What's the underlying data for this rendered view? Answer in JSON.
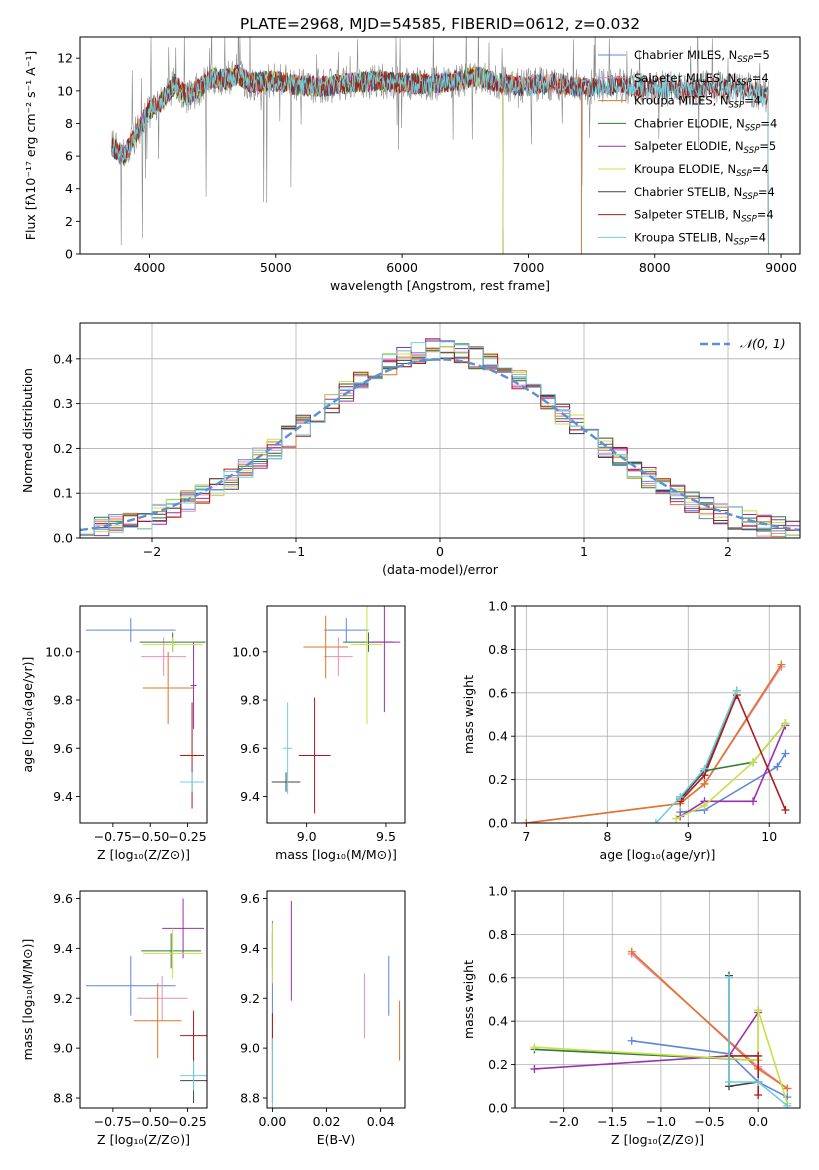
{
  "figure_title": "PLATE=2968, MJD=54585, FIBERID=0612, z=0.032",
  "colors": {
    "chabrier_miles": "#5b86d9",
    "salpeter_miles": "#e48fb8",
    "kroupa_miles": "#e0752b",
    "chabrier_elodie": "#2f7a3a",
    "salpeter_elodie": "#9b2fae",
    "kroupa_elodie": "#c8e04a",
    "chabrier_stelib": "#444444",
    "salpeter_stelib": "#b01818",
    "kroupa_stelib": "#6fd0dd",
    "gaussian": "#5b8fd6"
  },
  "chart_data": [
    {
      "id": "spectrum",
      "type": "line",
      "xlabel": "wavelength [Angstrom, rest frame]",
      "ylabel": "Flux [fλ10⁻¹⁷ erg cm⁻² s⁻¹ A⁻¹]",
      "xlim": [
        3450,
        9150
      ],
      "ylim": [
        0,
        13.3
      ],
      "xticks": [
        4000,
        5000,
        6000,
        7000,
        8000,
        9000
      ],
      "yticks": [
        0,
        2,
        4,
        6,
        8,
        10,
        12
      ],
      "legend_position": "top-right",
      "continuum": {
        "x": [
          3700,
          3800,
          3900,
          4000,
          4100,
          4200,
          4300,
          4400,
          4500,
          4600,
          4700,
          4800,
          5000,
          5200,
          5400,
          5600,
          5800,
          6000,
          6200,
          6400,
          6600,
          6800,
          7000,
          7200,
          7400,
          7600,
          7800,
          8000,
          8200,
          8400,
          8600,
          8800,
          8900
        ],
        "y": [
          6.6,
          6.0,
          7.5,
          8.8,
          9.4,
          10.4,
          9.6,
          10.2,
          10.8,
          10.7,
          11.0,
          10.5,
          10.6,
          10.3,
          10.3,
          10.5,
          10.6,
          10.5,
          10.4,
          10.6,
          10.9,
          10.4,
          10.3,
          10.5,
          10.2,
          10.3,
          10.3,
          10.2,
          10.1,
          10.2,
          10.1,
          10.0,
          9.6
        ]
      },
      "series": [
        {
          "name": "Chabrier MILES",
          "nssp": "5",
          "color": "#5b86d9",
          "xmax": 7420
        },
        {
          "name": "Salpeter MILES",
          "nssp": "4",
          "color": "#e48fb8",
          "xmax": 7420
        },
        {
          "name": "Kroupa MILES",
          "nssp": "4",
          "color": "#e0752b",
          "xmax": 7420
        },
        {
          "name": "Chabrier ELODIE",
          "nssp": "4",
          "color": "#2f7a3a",
          "xmax": 6800
        },
        {
          "name": "Salpeter ELODIE",
          "nssp": "5",
          "color": "#9b2fae",
          "xmax": 6800
        },
        {
          "name": "Kroupa ELODIE",
          "nssp": "4",
          "color": "#c8e04a",
          "xmax": 6800
        },
        {
          "name": "Chabrier STELIB",
          "nssp": "4",
          "color": "#444444",
          "xmax": 8900
        },
        {
          "name": "Salpeter STELIB",
          "nssp": "4",
          "color": "#b01818",
          "xmax": 8900
        },
        {
          "name": "Kroupa STELIB",
          "nssp": "4",
          "color": "#6fd0dd",
          "xmax": 8900
        }
      ]
    },
    {
      "id": "residuals",
      "type": "histogram",
      "xlabel": "(data-model)/error",
      "ylabel": "Normed distribution",
      "xlim": [
        -2.5,
        2.5
      ],
      "ylim": [
        0,
        0.48
      ],
      "xticks": [
        -2,
        -1,
        0,
        1,
        2
      ],
      "yticks": [
        0.0,
        0.1,
        0.2,
        0.3,
        0.4
      ],
      "grid": true,
      "legend": "𝒩(0, 1)",
      "legend_position": "top-right",
      "bin_width": 0.1
    },
    {
      "id": "age_vs_z",
      "type": "errorbar",
      "xlabel": "Z [log₁₀(Z/Z⊙)]",
      "ylabel": "age  [log₁₀(age/yr)]",
      "xlim": [
        -0.97,
        -0.12
      ],
      "ylim": [
        9.29,
        10.19
      ],
      "xticks": [
        -0.75,
        -0.5,
        -0.25
      ],
      "xticklabels": [
        "−0.75",
        "−0.50",
        "−0.25"
      ],
      "yticks": [
        9.4,
        9.6,
        9.8,
        10.0
      ],
      "points": [
        {
          "x": -0.63,
          "y": 10.09,
          "dx": 0.3,
          "dy": 0.05,
          "color": "#5b86d9"
        },
        {
          "x": -0.41,
          "y": 9.98,
          "dx": 0.15,
          "dy": 0.08,
          "color": "#e48fb8"
        },
        {
          "x": -0.38,
          "y": 9.85,
          "dx": 0.17,
          "dy": 0.15,
          "color": "#e0752b"
        },
        {
          "x": -0.35,
          "y": 10.04,
          "dx": 0.22,
          "dy": 0.04,
          "color": "#2f7a3a"
        },
        {
          "x": -0.21,
          "y": 9.86,
          "dx": 0.02,
          "dy": 0.18,
          "color": "#9b2fae"
        },
        {
          "x": -0.35,
          "y": 10.03,
          "dx": 0.2,
          "dy": 0.03,
          "color": "#c8e04a"
        },
        {
          "x": -0.22,
          "y": 9.46,
          "dx": 0.08,
          "dy": 0.04,
          "color": "#444444"
        },
        {
          "x": -0.22,
          "y": 9.57,
          "dx": 0.08,
          "dy": 0.22,
          "color": "#b01818"
        },
        {
          "x": -0.22,
          "y": 9.46,
          "dx": 0.08,
          "dy": 0.04,
          "color": "#6fd0dd"
        }
      ]
    },
    {
      "id": "age_vs_mass",
      "type": "errorbar",
      "xlabel": "mass [log₁₀(M/M⊙)]",
      "ylabel": "",
      "xlim": [
        8.75,
        9.62
      ],
      "ylim": [
        9.29,
        10.19
      ],
      "xticks": [
        9.0,
        9.5
      ],
      "yticks": [
        9.4,
        9.6,
        9.8,
        10.0
      ],
      "points": [
        {
          "x": 9.25,
          "y": 10.09,
          "dx": 0.14,
          "dy": 0.05,
          "color": "#5b86d9"
        },
        {
          "x": 9.2,
          "y": 9.98,
          "dx": 0.09,
          "dy": 0.08,
          "color": "#e48fb8"
        },
        {
          "x": 9.12,
          "y": 10.02,
          "dx": 0.14,
          "dy": 0.13,
          "color": "#e0752b"
        },
        {
          "x": 9.39,
          "y": 10.04,
          "dx": 0.16,
          "dy": 0.04,
          "color": "#2f7a3a"
        },
        {
          "x": 9.49,
          "y": 10.04,
          "dx": 0.1,
          "dy": 0.29,
          "color": "#9b2fae"
        },
        {
          "x": 9.38,
          "y": 10.03,
          "dx": 0.1,
          "dy": 0.33,
          "color": "#c8e04a"
        },
        {
          "x": 8.87,
          "y": 9.46,
          "dx": 0.09,
          "dy": 0.04,
          "color": "#444444"
        },
        {
          "x": 9.05,
          "y": 9.57,
          "dx": 0.1,
          "dy": 0.24,
          "color": "#b01818"
        },
        {
          "x": 8.88,
          "y": 9.6,
          "dx": 0.03,
          "dy": 0.19,
          "color": "#6fd0dd"
        }
      ]
    },
    {
      "id": "weight_vs_age",
      "type": "line",
      "xlabel": "age  [log₁₀(age/yr)]",
      "ylabel": "mass weight",
      "xlim": [
        6.86,
        10.38
      ],
      "ylim": [
        0,
        1.0
      ],
      "xticks": [
        7,
        8,
        9,
        10
      ],
      "yticks": [
        0.0,
        0.2,
        0.4,
        0.6,
        0.8,
        1.0
      ],
      "grid": true,
      "series": [
        {
          "name": "Chabrier MILES",
          "color": "#5b86d9",
          "x": [
            8.9,
            9.2,
            10.1,
            10.2
          ],
          "y": [
            0.05,
            0.06,
            0.26,
            0.32
          ]
        },
        {
          "name": "Salpeter MILES",
          "color": "#e48fb8",
          "x": [
            7.0,
            8.9,
            9.2,
            10.15
          ],
          "y": [
            0.0,
            0.09,
            0.18,
            0.72
          ]
        },
        {
          "name": "Kroupa MILES",
          "color": "#e0752b",
          "x": [
            7.0,
            8.9,
            9.2,
            10.15
          ],
          "y": [
            0.0,
            0.09,
            0.18,
            0.73
          ]
        },
        {
          "name": "Chabrier ELODIE",
          "color": "#2f7a3a",
          "x": [
            8.9,
            9.2,
            9.8,
            10.2
          ],
          "y": [
            0.12,
            0.24,
            0.28,
            0.46
          ]
        },
        {
          "name": "Salpeter ELODIE",
          "color": "#9b2fae",
          "x": [
            8.9,
            9.2,
            9.8,
            10.2
          ],
          "y": [
            0.03,
            0.1,
            0.1,
            0.45
          ]
        },
        {
          "name": "Kroupa ELODIE",
          "color": "#c8e04a",
          "x": [
            8.85,
            9.2,
            9.8,
            10.2
          ],
          "y": [
            0.02,
            0.08,
            0.28,
            0.46
          ]
        },
        {
          "name": "Chabrier STELIB",
          "color": "#444444",
          "x": [
            8.9,
            9.2,
            9.6
          ],
          "y": [
            0.11,
            0.24,
            0.61
          ]
        },
        {
          "name": "Salpeter STELIB",
          "color": "#b01818",
          "x": [
            8.9,
            9.2,
            9.6,
            10.2
          ],
          "y": [
            0.1,
            0.22,
            0.59,
            0.06
          ]
        },
        {
          "name": "Kroupa STELIB",
          "color": "#6fd0dd",
          "x": [
            8.6,
            8.9,
            9.2,
            9.6
          ],
          "y": [
            0.0,
            0.12,
            0.25,
            0.61
          ]
        }
      ]
    },
    {
      "id": "mass_vs_z",
      "type": "errorbar",
      "xlabel": "Z [log₁₀(Z/Z⊙)]",
      "ylabel": "mass [log₁₀(M/M⊙)]",
      "xlim": [
        -0.97,
        -0.12
      ],
      "ylim": [
        8.76,
        9.63
      ],
      "xticks": [
        -0.75,
        -0.5,
        -0.25
      ],
      "xticklabels": [
        "−0.75",
        "−0.50",
        "−0.25"
      ],
      "yticks": [
        8.8,
        9.0,
        9.2,
        9.4,
        9.6
      ],
      "points": [
        {
          "x": -0.63,
          "y": 9.25,
          "dx": 0.3,
          "dy": 0.12,
          "color": "#5b86d9"
        },
        {
          "x": -0.42,
          "y": 9.2,
          "dx": 0.17,
          "dy": 0.09,
          "color": "#e48fb8"
        },
        {
          "x": -0.45,
          "y": 9.11,
          "dx": 0.16,
          "dy": 0.15,
          "color": "#e0752b"
        },
        {
          "x": -0.36,
          "y": 9.39,
          "dx": 0.2,
          "dy": 0.07,
          "color": "#2f7a3a"
        },
        {
          "x": -0.28,
          "y": 9.48,
          "dx": 0.14,
          "dy": 0.12,
          "color": "#9b2fae"
        },
        {
          "x": -0.35,
          "y": 9.38,
          "dx": 0.2,
          "dy": 0.1,
          "color": "#c8e04a"
        },
        {
          "x": -0.21,
          "y": 8.87,
          "dx": 0.09,
          "dy": 0.09,
          "color": "#444444"
        },
        {
          "x": -0.21,
          "y": 9.05,
          "dx": 0.09,
          "dy": 0.1,
          "color": "#b01818"
        },
        {
          "x": -0.21,
          "y": 8.89,
          "dx": 0.09,
          "dy": 0.06,
          "color": "#6fd0dd"
        }
      ]
    },
    {
      "id": "mass_vs_ebv",
      "type": "errorbar",
      "xlabel": "E(B-V)",
      "ylabel": "",
      "xlim": [
        -0.002,
        0.049
      ],
      "ylim": [
        8.76,
        9.63
      ],
      "xticks": [
        0.0,
        0.02,
        0.04
      ],
      "xticklabels": [
        "0.00",
        "0.02",
        "0.04"
      ],
      "yticks": [
        8.8,
        9.0,
        9.2,
        9.4,
        9.6
      ],
      "points": [
        {
          "x": 0.0,
          "y": 9.25,
          "dx": 0,
          "dy": 0.26,
          "color": "#5b86d9"
        },
        {
          "x": 0.034,
          "y": 9.17,
          "dx": 0,
          "dy": 0.13,
          "color": "#e48fb8"
        },
        {
          "x": 0.047,
          "y": 9.07,
          "dx": 0,
          "dy": 0.12,
          "color": "#e0752b"
        },
        {
          "x": 0.0,
          "y": 9.39,
          "dx": 0,
          "dy": 0.07,
          "color": "#2f7a3a"
        },
        {
          "x": 0.007,
          "y": 9.39,
          "dx": 0,
          "dy": 0.2,
          "color": "#9b2fae"
        },
        {
          "x": 0.0,
          "y": 9.38,
          "dx": 0,
          "dy": 0.12,
          "color": "#c8e04a"
        },
        {
          "x": 0.0,
          "y": 8.87,
          "dx": 0,
          "dy": 0.09,
          "color": "#444444"
        },
        {
          "x": 0.0,
          "y": 9.05,
          "dx": 0,
          "dy": 0.09,
          "color": "#b01818"
        },
        {
          "x": 0.0,
          "y": 8.9,
          "dx": 0,
          "dy": 0.14,
          "color": "#6fd0dd"
        },
        {
          "x": 0.043,
          "y": 9.25,
          "dx": 0,
          "dy": 0.12,
          "color": "#5b86d9"
        }
      ]
    },
    {
      "id": "weight_vs_z",
      "type": "line",
      "xlabel": "Z [log₁₀(Z/Z⊙)]",
      "ylabel": "mass weight",
      "xlim": [
        -2.5,
        0.43
      ],
      "ylim": [
        0,
        1.0
      ],
      "xticks": [
        -2.0,
        -1.5,
        -1.0,
        -0.5,
        0.0
      ],
      "xticklabels": [
        "−2.0",
        "−1.5",
        "−1.0",
        "−0.5",
        "0.0"
      ],
      "yticks": [
        0.0,
        0.2,
        0.4,
        0.6,
        0.8,
        1.0
      ],
      "grid": true,
      "series": [
        {
          "name": "Chabrier MILES",
          "color": "#5b86d9",
          "x": [
            -1.3,
            -0.3,
            0.0,
            0.3
          ],
          "y": [
            0.31,
            0.25,
            0.12,
            0.05
          ]
        },
        {
          "name": "Salpeter MILES",
          "color": "#e48fb8",
          "x": [
            -1.3,
            0.0,
            0.3
          ],
          "y": [
            0.71,
            0.19,
            0.09
          ]
        },
        {
          "name": "Kroupa MILES",
          "color": "#e0752b",
          "x": [
            -1.3,
            0.0,
            0.3
          ],
          "y": [
            0.72,
            0.18,
            0.09
          ]
        },
        {
          "name": "Chabrier ELODIE",
          "color": "#2f7a3a",
          "x": [
            -2.3,
            0.0,
            0.0
          ],
          "y": [
            0.27,
            0.22,
            0.45
          ]
        },
        {
          "name": "Salpeter ELODIE",
          "color": "#9b2fae",
          "x": [
            -2.3,
            -0.3,
            0.0
          ],
          "y": [
            0.18,
            0.24,
            0.44
          ]
        },
        {
          "name": "Kroupa ELODIE",
          "color": "#c8e04a",
          "x": [
            -2.3,
            0.0,
            0.0,
            0.3
          ],
          "y": [
            0.28,
            0.22,
            0.45,
            0.02
          ]
        },
        {
          "name": "Chabrier STELIB",
          "color": "#444444",
          "x": [
            -0.3,
            -0.3,
            0.0
          ],
          "y": [
            0.61,
            0.1,
            0.12
          ]
        },
        {
          "name": "Salpeter STELIB",
          "color": "#b01818",
          "x": [
            -0.3,
            0.0,
            0.0
          ],
          "y": [
            0.24,
            0.24,
            0.06
          ]
        },
        {
          "name": "Kroupa STELIB",
          "color": "#6fd0dd",
          "x": [
            -0.3,
            -0.3,
            0.0,
            0.3
          ],
          "y": [
            0.6,
            0.12,
            0.12,
            0.01
          ]
        }
      ]
    }
  ]
}
